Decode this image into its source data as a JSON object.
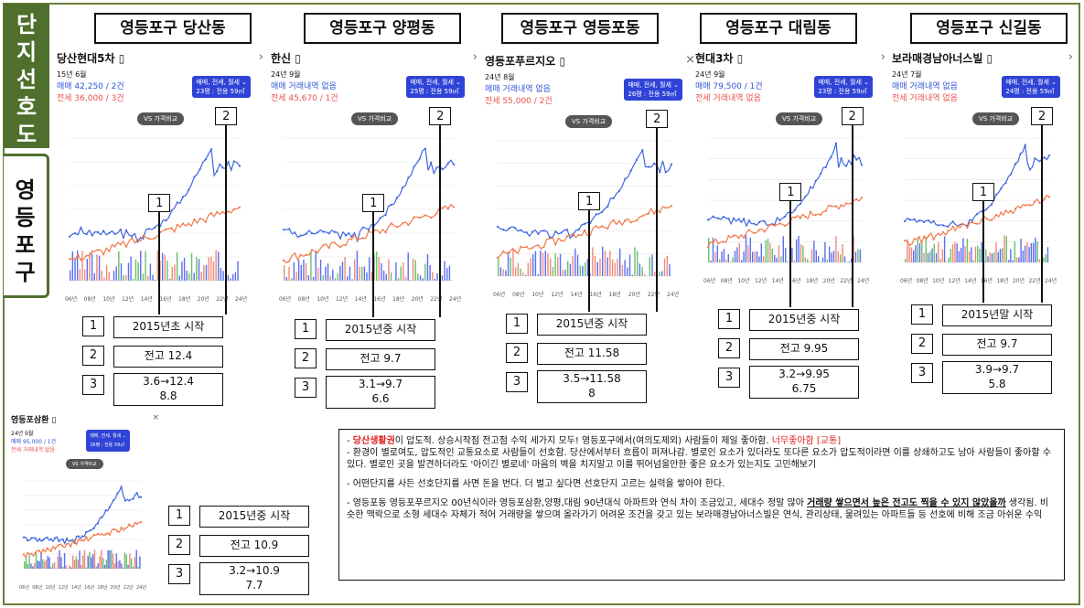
{
  "sidebar": {
    "top": [
      "단",
      "지",
      "선",
      "호",
      "도"
    ],
    "bottom": [
      "영",
      "등",
      "포",
      "구"
    ]
  },
  "titles": [
    "영등포구 당산동",
    "영등포구 양평동",
    "영등포구 영등포동",
    "영등포구 대림동",
    "영등포구 신길동"
  ],
  "panels": [
    {
      "name": "당산현대5차",
      "date": "15년 6월",
      "sale": "매매 42,250 / 2건",
      "rent": "전세 36,000 / 3건",
      "badge1": "매매, 전세, 월세",
      "badge2": "23평 : 전용 59㎡",
      "vs": "VS 가격비교"
    },
    {
      "name": "한신",
      "date": "24년 9월",
      "sale": "매매 거래내역 없음",
      "rent": "전세 45,670 / 1건",
      "badge1": "매매, 전세, 월세",
      "badge2": "25평 : 전용 59㎡",
      "vs": "VS 가격비교"
    },
    {
      "name": "영등포푸르지오",
      "date": "24년 8월",
      "sale": "매매 거래내역 없음",
      "rent": "전세 55,000 / 2건",
      "badge1": "매매, 전세, 월세",
      "badge2": "26평 : 전용 59㎡",
      "vs": "VS 가격비교"
    },
    {
      "name": "현대3차",
      "date": "24년 9월",
      "sale": "매매 79,500 / 1건",
      "rent": "전세 거래내역 없음",
      "badge1": "매매, 전세, 월세",
      "badge2": "23평 : 전용 59㎡",
      "vs": "VS 가격비교"
    },
    {
      "name": "보라매경남아너스빌",
      "date": "24년 7월",
      "sale": "매매 거래내역 없음",
      "rent": "전세 거래내역 없음",
      "badge1": "매매, 전세, 월세",
      "badge2": "24평 : 전용 59㎡",
      "vs": "VS 가격비교"
    },
    {
      "name": "영등포삼환",
      "date": "24년 9월",
      "sale": "매매 95,000 / 1건",
      "rent": "전세 거래내역 없음",
      "badge1": "매매, 전세, 월세",
      "badge2": "26평 : 전용 59㎡",
      "vs": "VS 가격비교"
    }
  ],
  "xticks": [
    "06년",
    "08년",
    "10년",
    "12년",
    "14년",
    "16년",
    "18년",
    "20년",
    "22년",
    "24년"
  ],
  "info": [
    [
      "2015년초 시작",
      "전고 12.4",
      "3.6→12.4",
      "8.8"
    ],
    [
      "2015년중 시작",
      "전고 9.7",
      "3.1→9.7",
      "6.6"
    ],
    [
      "2015년중 시작",
      "전고 11.58",
      "3.5→11.58",
      "8"
    ],
    [
      "2015년중 시작",
      "전고 9.95",
      "3.2→9.95",
      "6.75"
    ],
    [
      "2015년말 시작",
      "전고 9.7",
      "3.9→9.7",
      "5.8"
    ],
    [
      "2015년중 시작",
      "전고 10.9",
      "3.2→10.9",
      "7.7"
    ]
  ],
  "note": {
    "l1a": "- ",
    "l1b": "당산생활권",
    "l1c": "이 압도적. 상승시작점 전고점 수익 세가지 모두! 영등포구에서(여의도제외) 사람들이 제일 좋아함. ",
    "l1d": "너무좋아함 [교통]",
    "l2": "- 환경이 별로여도, 압도적인 교통요소로 사람들이 선호함. 당산에서부터 흐름이 퍼져나감. 별로인 요소가 있더라도 또다른 요소가 압도적이라면 이를 상쇄하고도 남아 사람들이 좋아할 수 있다. 별로인 곳을 발견하더라도 '아이긴 별로네' 마음의 벽을 치지말고 이를 뛰어넘을만한 좋은 요소가 있는지도 고민해보기",
    "l3": "- 어떤단지를 사든 선호단지를 사면 돈을 번다. 더 벌고 싶다면 선호단지 고르는 실력을 쌓아야 한다.",
    "l4a": "- 영등포동 영등포푸르지오 00년식이라 영등포삼환,양평,대림 90년대식 아파트와 연식 차이 조금있고, 세대수 정말 많아 ",
    "l4b": "거래량 쌓으면서 높은 전고도 찍을 수 있지 않았을까",
    "l4c": " 생각됨. 비슷한 맥락으로 소형 세대수 자체가 적어 거래량을 쌓으며 올라가기 어려운 조건을 갖고 있는 보라매경남아너스빌은 연식, 관리상태, 물려있는 아파트들 등 선호에 비해 조금 아쉬운 수익"
  }
}
